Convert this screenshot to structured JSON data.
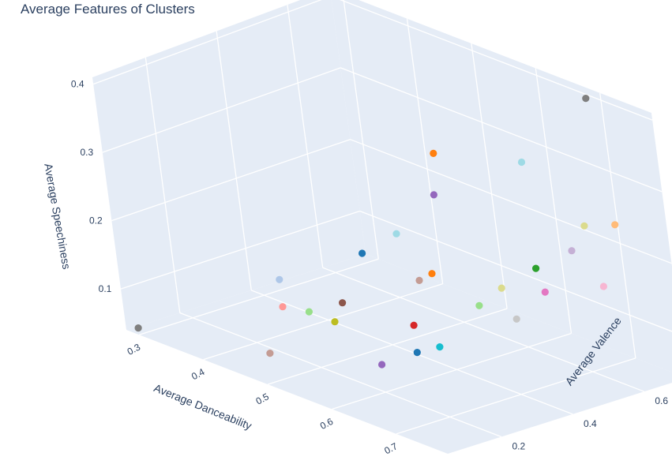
{
  "chart_data": {
    "type": "scatter3d",
    "title": "Average Features of Clusters",
    "x_axis": {
      "label": "Average Danceability",
      "ticks": [
        "0.3",
        "0.4",
        "0.5",
        "0.6",
        "0.7"
      ]
    },
    "y_axis": {
      "label": "Average Valence",
      "ticks": [
        "0.2",
        "0.4",
        "0.6"
      ]
    },
    "z_axis": {
      "label": "Average Speechiness",
      "ticks": [
        "0.1",
        "0.2",
        "0.3",
        "0.4"
      ]
    },
    "grid": true,
    "legend": "none",
    "points": [
      {
        "danceability": 0.3,
        "valence": 0.05,
        "speechiness": 0.05,
        "color": "#7f7f7f"
      },
      {
        "danceability": 0.48,
        "valence": 0.1,
        "speechiness": 0.07,
        "color": "#c49c94"
      },
      {
        "danceability": 0.42,
        "valence": 0.25,
        "speechiness": 0.13,
        "color": "#aec7e8"
      },
      {
        "danceability": 0.45,
        "valence": 0.2,
        "speechiness": 0.11,
        "color": "#ff9896"
      },
      {
        "danceability": 0.48,
        "valence": 0.22,
        "speechiness": 0.11,
        "color": "#98df8a"
      },
      {
        "danceability": 0.52,
        "valence": 0.22,
        "speechiness": 0.11,
        "color": "#bcbd22"
      },
      {
        "danceability": 0.5,
        "valence": 0.28,
        "speechiness": 0.12,
        "color": "#8c564b"
      },
      {
        "danceability": 0.47,
        "valence": 0.4,
        "speechiness": 0.16,
        "color": "#1f77b4"
      },
      {
        "danceability": 0.5,
        "valence": 0.45,
        "speechiness": 0.19,
        "color": "#9edae5"
      },
      {
        "danceability": 0.56,
        "valence": 0.48,
        "speechiness": 0.32,
        "color": "#ff7f0e"
      },
      {
        "danceability": 0.57,
        "valence": 0.45,
        "speechiness": 0.27,
        "color": "#9467bd"
      },
      {
        "danceability": 0.58,
        "valence": 0.4,
        "speechiness": 0.17,
        "color": "#ff7f0e"
      },
      {
        "danceability": 0.57,
        "valence": 0.38,
        "speechiness": 0.16,
        "color": "#c49c94"
      },
      {
        "danceability": 0.6,
        "valence": 0.3,
        "speechiness": 0.12,
        "color": "#d62728"
      },
      {
        "danceability": 0.63,
        "valence": 0.25,
        "speechiness": 0.1,
        "color": "#1f77b4"
      },
      {
        "danceability": 0.6,
        "valence": 0.2,
        "speechiness": 0.08,
        "color": "#9467bd"
      },
      {
        "danceability": 0.65,
        "valence": 0.28,
        "speechiness": 0.11,
        "color": "#17becf"
      },
      {
        "danceability": 0.66,
        "valence": 0.55,
        "speechiness": 0.33,
        "color": "#9edae5"
      },
      {
        "danceability": 0.62,
        "valence": 0.45,
        "speechiness": 0.13,
        "color": "#98df8a"
      },
      {
        "danceability": 0.63,
        "valence": 0.5,
        "speechiness": 0.15,
        "color": "#dbdb8d"
      },
      {
        "danceability": 0.66,
        "valence": 0.55,
        "speechiness": 0.18,
        "color": "#2ca02c"
      },
      {
        "danceability": 0.66,
        "valence": 0.48,
        "speechiness": 0.12,
        "color": "#c7c7c7"
      },
      {
        "danceability": 0.67,
        "valence": 0.55,
        "speechiness": 0.15,
        "color": "#e377c2"
      },
      {
        "danceability": 0.68,
        "valence": 0.62,
        "speechiness": 0.2,
        "color": "#c5b0d5"
      },
      {
        "danceability": 0.7,
        "valence": 0.66,
        "speechiness": 0.15,
        "color": "#f7b6d2"
      },
      {
        "danceability": 0.7,
        "valence": 0.63,
        "speechiness": 0.24,
        "color": "#dbdb8d"
      },
      {
        "danceability": 0.72,
        "valence": 0.68,
        "speechiness": 0.24,
        "color": "#ffbb78"
      },
      {
        "danceability": 0.7,
        "valence": 0.68,
        "speechiness": 0.41,
        "color": "#7f7f7f"
      }
    ]
  }
}
